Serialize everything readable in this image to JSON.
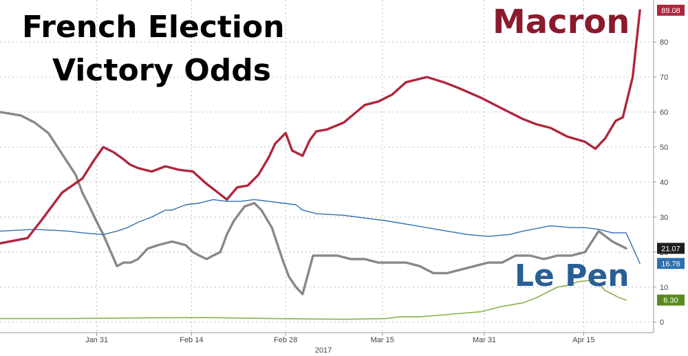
{
  "chart_data": {
    "type": "line",
    "title": [
      "French Election",
      "Victory Odds"
    ],
    "xlabel": "2017",
    "ylabel": "",
    "ylim": [
      -3,
      92
    ],
    "xlim": [
      0,
      100
    ],
    "x_ticks": [
      {
        "x": 14.8,
        "label": "Jan 31"
      },
      {
        "x": 29.3,
        "label": "Feb 14"
      },
      {
        "x": 43.7,
        "label": "Feb 28"
      },
      {
        "x": 58.5,
        "label": "Mar 15"
      },
      {
        "x": 74.1,
        "label": "Mar 31"
      },
      {
        "x": 89.3,
        "label": "Apr 15"
      }
    ],
    "y_ticks": [
      0,
      10,
      20,
      30,
      40,
      50,
      60,
      70,
      80
    ],
    "grid": true,
    "annotations": [
      {
        "text": "Macron",
        "series": "Macron"
      },
      {
        "text": "Le Pen",
        "series": "Le Pen"
      }
    ],
    "last_value_labels": [
      {
        "value": 89.08,
        "text": "89.08",
        "color": "#b0263d"
      },
      {
        "value": 21.07,
        "text": "21.07",
        "color": "#1f1f1f"
      },
      {
        "value": 16.76,
        "text": "16.76",
        "color": "#2e6fb0"
      },
      {
        "value": 6.3,
        "text": "6.30",
        "color": "#5a8a1e"
      }
    ],
    "series": [
      {
        "name": "Macron",
        "color": "#b0263d",
        "x": [
          0,
          4.2,
          6.3,
          9.5,
          12.6,
          14.3,
          15.8,
          17.4,
          18.9,
          19.9,
          21.1,
          23.2,
          25.3,
          27.4,
          29.5,
          31.6,
          33.7,
          34.7,
          36.3,
          37.9,
          39.5,
          41.1,
          42.1,
          43.7,
          44.7,
          46.3,
          47.4,
          48.4,
          50.0,
          52.6,
          55.8,
          57.9,
          60.0,
          62.1,
          65.3,
          67.9,
          70.0,
          73.7,
          76.8,
          80.0,
          82.1,
          84.2,
          86.8,
          89.5,
          91.1,
          92.6,
          94.2,
          95.3,
          96.8,
          97.9
        ],
        "y": [
          22.5,
          24,
          29,
          37,
          41,
          46,
          50,
          48.5,
          46.5,
          45,
          44,
          43,
          44.5,
          43.5,
          43,
          39.5,
          36.5,
          35,
          38.5,
          39,
          42,
          47,
          51,
          54,
          49,
          47.5,
          52,
          54.5,
          55,
          57,
          62,
          63,
          65,
          68.5,
          70,
          68.5,
          67,
          64,
          61,
          58,
          56.5,
          55.5,
          53,
          51.5,
          49.5,
          52.5,
          57.5,
          58.5,
          70,
          89.08
        ]
      },
      {
        "name": "Le Pen",
        "color": "#2e6fb0",
        "x": [
          0,
          5.3,
          10.5,
          12.6,
          15.8,
          17.9,
          19.5,
          21.1,
          23.2,
          25.3,
          26.3,
          28.4,
          30.5,
          32.6,
          34.7,
          36.8,
          38.9,
          41.1,
          43.2,
          45.3,
          46.3,
          48.4,
          52.6,
          56.8,
          58.9,
          62.1,
          65.3,
          68.4,
          71.6,
          74.7,
          77.9,
          80.0,
          84.2,
          87.4,
          89.5,
          91.6,
          93.7,
          95.8,
          97.9
        ],
        "y": [
          26,
          26.5,
          26,
          25.5,
          25,
          26,
          27,
          28.5,
          30,
          32,
          32,
          33.5,
          34,
          35,
          34.5,
          34.5,
          35,
          34.5,
          34,
          33.5,
          32,
          31,
          30.5,
          29.5,
          29,
          28,
          27,
          26,
          25,
          24.5,
          25,
          26,
          27.5,
          27,
          27,
          26.5,
          25.5,
          25.5,
          16.76
        ]
      },
      {
        "name": "",
        "color": "#888888",
        "x": [
          0,
          3.2,
          5.3,
          7.4,
          9.5,
          11.6,
          12.6,
          13.7,
          14.7,
          15.8,
          17.9,
          18.9,
          20.0,
          21.1,
          22.6,
          24.2,
          26.3,
          28.4,
          29.5,
          30.5,
          31.6,
          32.6,
          33.7,
          34.7,
          35.8,
          37.4,
          38.9,
          40.0,
          41.6,
          43.2,
          44.2,
          45.3,
          46.3,
          47.9,
          49.5,
          51.6,
          53.7,
          55.8,
          57.9,
          60.0,
          62.1,
          64.2,
          66.3,
          68.4,
          70.5,
          72.6,
          74.7,
          76.8,
          78.9,
          81.1,
          83.2,
          85.3,
          87.4,
          89.5,
          91.6,
          93.7,
          95.8
        ],
        "y": [
          60,
          59,
          57,
          54,
          48,
          42,
          37,
          33,
          29,
          25,
          16,
          17,
          17,
          18,
          21,
          22,
          23,
          22,
          20,
          19,
          18,
          19,
          20,
          25,
          29,
          33,
          34,
          32,
          27,
          18,
          13,
          10,
          8,
          19,
          19,
          19,
          18,
          18,
          17,
          17,
          17,
          16,
          14,
          14,
          15,
          16,
          17,
          17,
          19,
          19,
          18,
          19,
          19,
          20,
          26,
          23,
          21.07
        ]
      },
      {
        "name": "",
        "color": "#8ab04a",
        "x": [
          0,
          10.5,
          21.1,
          31.6,
          42.1,
          52.6,
          59.0,
          61.1,
          64.2,
          67.4,
          70.5,
          73.7,
          76.8,
          80.0,
          82.1,
          84.2,
          85.3,
          86.8,
          88.4,
          90.5,
          91.6,
          92.6,
          93.7,
          94.7,
          95.8
        ],
        "y": [
          1,
          1,
          1.2,
          1.3,
          1,
          0.8,
          1,
          1.5,
          1.5,
          2,
          2.5,
          3,
          4.5,
          5.5,
          7,
          9,
          10,
          10.5,
          11.5,
          12,
          11,
          9,
          8,
          7,
          6.3
        ]
      }
    ]
  }
}
